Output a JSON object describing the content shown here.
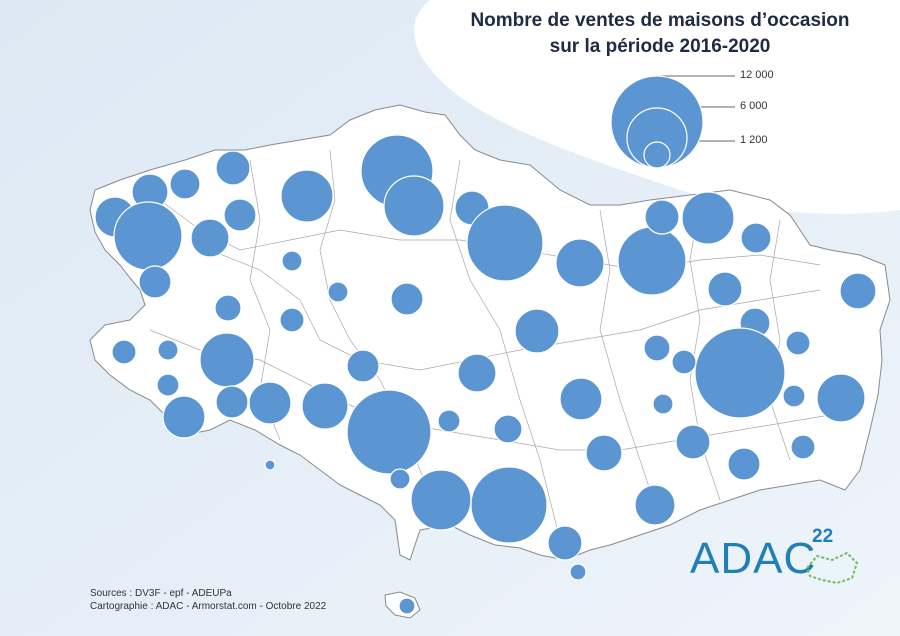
{
  "title_line1": "Nombre de ventes de maisons d’occasion",
  "title_line2": "sur la période 2016-2020",
  "legend": {
    "labels": [
      "12 000",
      "6 000",
      "1 200"
    ],
    "values": [
      12000,
      6000,
      1200
    ]
  },
  "sources_line1": "Sources : DV3F - epf - ADEUPa",
  "sources_line2": "Cartographie : ADAC - Armorstat.com - Octobre 2022",
  "logo": {
    "text": "ADAC",
    "number": "22"
  },
  "colors": {
    "sea": "#dce9f4",
    "land": "#ffffff",
    "circle": "#5b96d2",
    "border": "#999999"
  }
}
